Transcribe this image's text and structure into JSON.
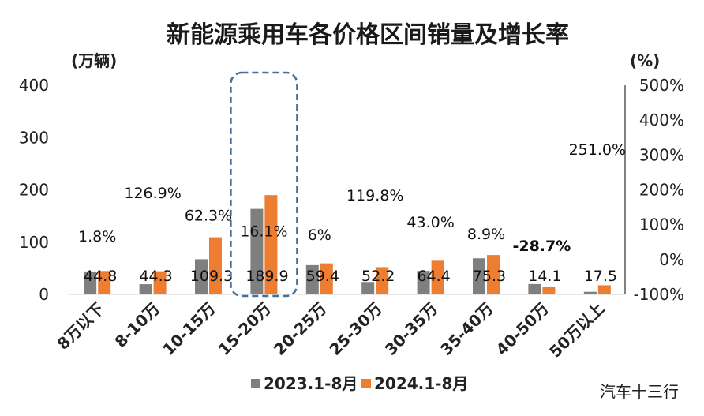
{
  "chart_data": {
    "type": "bar",
    "title": "新能源乘用车各价格区间销量及增长率",
    "left_axis_unit": "(万辆)",
    "right_axis_unit": "(%)",
    "categories": [
      "8万以下",
      "8-10万",
      "10-15万",
      "15-20万",
      "20-25万",
      "25-30万",
      "30-35万",
      "35-40万",
      "40-50万",
      "50万以上"
    ],
    "series": [
      {
        "name": "2023.1-8月",
        "color": "#7f7f7f",
        "values": [
          44.0,
          19.5,
          67.3,
          163.6,
          56.0,
          23.8,
          45.0,
          69.1,
          19.8,
          5.0
        ]
      },
      {
        "name": "2024.1-8月",
        "color": "#ed7d31",
        "values": [
          44.8,
          44.3,
          109.3,
          189.9,
          59.4,
          52.2,
          64.4,
          75.3,
          14.1,
          17.5
        ]
      }
    ],
    "data_labels": [
      "44.8",
      "44.3",
      "109.3",
      "189.9",
      "59.4",
      "52.2",
      "64.4",
      "75.3",
      "14.1",
      "17.5"
    ],
    "growth_rates": [
      {
        "label": "1.8%",
        "value": 1.8
      },
      {
        "label": "126.9%",
        "value": 126.9
      },
      {
        "label": "62.3%",
        "value": 62.3
      },
      {
        "label": "16.1%",
        "value": 16.1
      },
      {
        "label": "6%",
        "value": 6
      },
      {
        "label": "119.8%",
        "value": 119.8
      },
      {
        "label": "43.0%",
        "value": 43.0
      },
      {
        "label": "8.9%",
        "value": 8.9
      },
      {
        "label": "-28.7%",
        "value": -28.7,
        "color": "#e0252b"
      },
      {
        "label": "251.0%",
        "value": 251.0
      }
    ],
    "ylim": [
      0,
      400
    ],
    "yticks": [
      "0",
      "100",
      "200",
      "300",
      "400"
    ],
    "y2lim": [
      -100,
      500
    ],
    "y2ticks": [
      "-100%",
      "0%",
      "100%",
      "200%",
      "300%",
      "400%",
      "500%"
    ],
    "highlight_category": "15-20万",
    "highlight_color": "#41719c",
    "grid": false,
    "legend_position": "bottom"
  },
  "watermark": {
    "text": "汽车十三行"
  }
}
